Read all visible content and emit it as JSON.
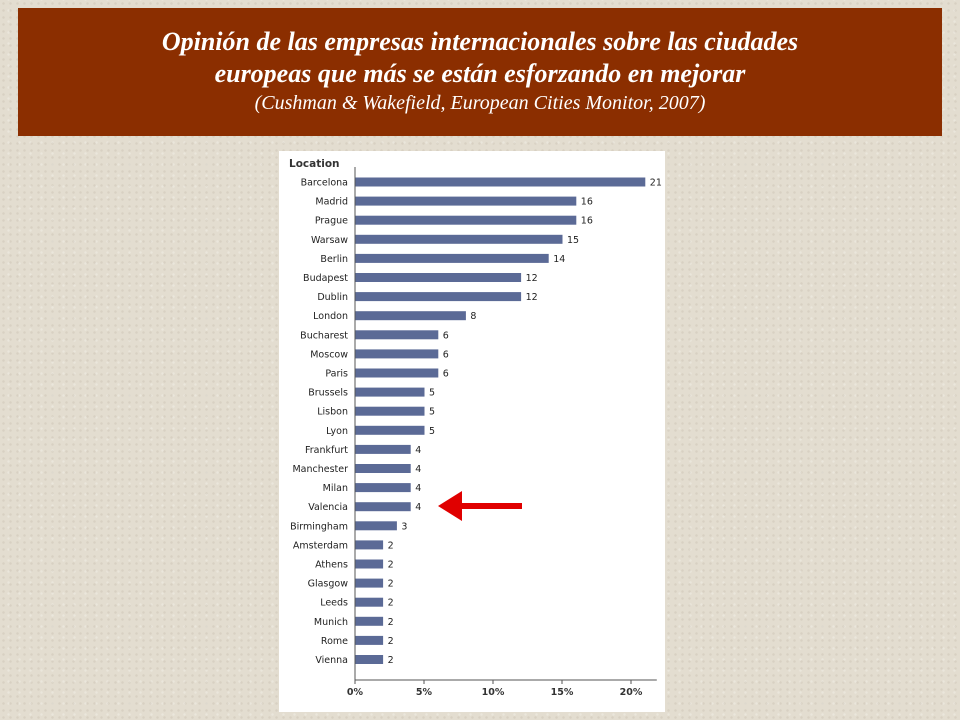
{
  "header": {
    "title_line1": "Opinión de las empresas internacionales sobre las ciudades",
    "title_line2": "europeas que más se están esforzando en mejorar",
    "source": "(Cushman & Wakefield, European Cities Monitor, 2007)"
  },
  "colors": {
    "header_bg": "#8b2e00",
    "bar": "#5b6a96",
    "arrow": "#e00000"
  },
  "chart_data": {
    "type": "bar",
    "orientation": "horizontal",
    "column_header": "Location",
    "categories": [
      "Barcelona",
      "Madrid",
      "Prague",
      "Warsaw",
      "Berlin",
      "Budapest",
      "Dublin",
      "London",
      "Bucharest",
      "Moscow",
      "Paris",
      "Brussels",
      "Lisbon",
      "Lyon",
      "Frankfurt",
      "Manchester",
      "Milan",
      "Valencia",
      "Birmingham",
      "Amsterdam",
      "Athens",
      "Glasgow",
      "Leeds",
      "Munich",
      "Rome",
      "Vienna"
    ],
    "values": [
      21,
      16,
      16,
      15,
      14,
      12,
      12,
      8,
      6,
      6,
      6,
      5,
      5,
      5,
      4,
      4,
      4,
      4,
      3,
      2,
      2,
      2,
      2,
      2,
      2,
      2
    ],
    "value_labels": [
      "21",
      "16",
      "16",
      "15",
      "14",
      "12",
      "12",
      "8",
      "6",
      "6",
      "6",
      "5",
      "5",
      "5",
      "4",
      "4",
      "4",
      "4",
      "3",
      "2",
      "2",
      "2",
      "2",
      "2",
      "2",
      "2"
    ],
    "x_ticks": [
      "0%",
      "5%",
      "10%",
      "15%",
      "20%"
    ],
    "x_tick_values": [
      0,
      5,
      10,
      15,
      20
    ],
    "xlim": [
      0,
      21
    ],
    "highlight_category": "Valencia",
    "grid": false
  }
}
